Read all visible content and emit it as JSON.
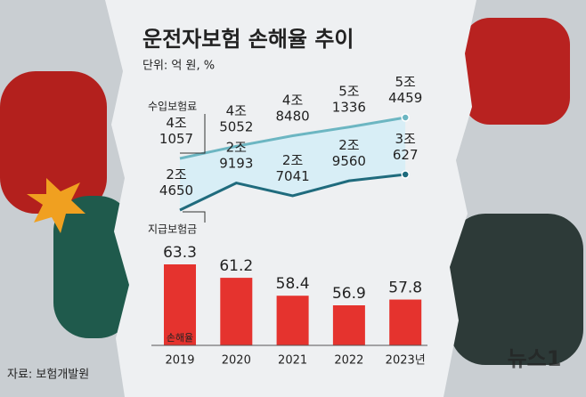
{
  "title": "운전자보험 손해율 추이",
  "unit": "단위: 억 원, %",
  "source": "자료: 보험개발원",
  "watermark": "뉴스1",
  "chart_data": [
    {
      "type": "line",
      "series": [
        {
          "name": "수입보험료",
          "color": "#6cb6c2",
          "values": [
            41057,
            45052,
            48480,
            51336,
            54459
          ],
          "value_labels": [
            [
              "4조",
              "1057"
            ],
            [
              "4조",
              "5052"
            ],
            [
              "4조",
              "8480"
            ],
            [
              "5조",
              "1336"
            ],
            [
              "5조",
              "4459"
            ]
          ]
        },
        {
          "name": "지급보험금",
          "color": "#1f6b7d",
          "values": [
            24650,
            29193,
            27041,
            29560,
            30627
          ],
          "value_labels": [
            [
              "2조",
              "4650"
            ],
            [
              "2조",
              "9193"
            ],
            [
              "2조",
              "7041"
            ],
            [
              "2조",
              "9560"
            ],
            [
              "3조",
              "627"
            ]
          ]
        }
      ],
      "fill_between": "#d8eef6"
    },
    {
      "type": "bar",
      "categories": [
        "2019",
        "2020",
        "2021",
        "2022",
        "2023년"
      ],
      "values": [
        63.3,
        61.2,
        58.4,
        56.9,
        57.8
      ],
      "color": "#e5332e",
      "bar_label": "손해율"
    }
  ]
}
